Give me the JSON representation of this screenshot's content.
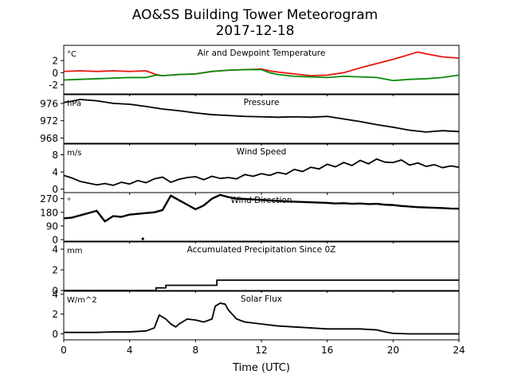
{
  "figure": {
    "title": "AO&SS Building Tower Meteorogram",
    "subtitle": "2017-12-18",
    "xlabel": "Time (UTC)"
  },
  "chart_data": [
    {
      "type": "line",
      "title": "Air and Dewpoint Temperature",
      "unit": "°C",
      "xlim": [
        0,
        24
      ],
      "ylim": [
        -3.5,
        4.5
      ],
      "yticks": [
        2,
        0,
        -2
      ],
      "xticks": [
        0,
        4,
        8,
        12,
        16,
        20,
        24
      ],
      "grid": false,
      "series": [
        {
          "color": "#e8140f",
          "x": [
            0,
            1,
            2,
            3,
            4,
            5,
            5.6,
            6,
            7,
            8,
            9,
            10,
            11,
            12,
            12.5,
            13,
            14,
            15,
            16,
            17,
            18,
            19,
            20,
            21,
            21.5,
            22,
            23,
            24
          ],
          "y": [
            0.2,
            0.3,
            0.2,
            0.3,
            0.2,
            0.3,
            -0.3,
            -0.5,
            -0.3,
            -0.2,
            0.2,
            0.4,
            0.5,
            0.6,
            0.3,
            0.1,
            -0.2,
            -0.5,
            -0.4,
            0.0,
            0.8,
            1.5,
            2.2,
            3.0,
            3.4,
            3.1,
            2.6,
            2.4
          ]
        },
        {
          "color": "#0a8a0a",
          "x": [
            0,
            1,
            2,
            3,
            4,
            5,
            5.6,
            6,
            7,
            8,
            9,
            10,
            11,
            12,
            12.5,
            13,
            14,
            15,
            16,
            17,
            18,
            19,
            20,
            21,
            22,
            23,
            24
          ],
          "y": [
            -1.2,
            -1.1,
            -1.0,
            -0.9,
            -0.8,
            -0.8,
            -0.4,
            -0.5,
            -0.3,
            -0.2,
            0.2,
            0.4,
            0.5,
            0.5,
            0.0,
            -0.3,
            -0.6,
            -0.7,
            -0.8,
            -0.6,
            -0.7,
            -0.8,
            -1.3,
            -1.1,
            -1.0,
            -0.8,
            -0.4
          ]
        }
      ]
    },
    {
      "type": "line",
      "title": "Pressure",
      "unit": "hPa",
      "xlim": [
        0,
        24
      ],
      "ylim": [
        966.8,
        978
      ],
      "yticks": [
        976,
        972,
        968
      ],
      "grid": false,
      "series": [
        {
          "color": "#000000",
          "x": [
            0,
            0.5,
            1,
            2,
            3,
            4,
            5,
            6,
            7,
            8,
            9,
            10,
            11,
            12,
            13,
            14,
            15,
            16,
            17,
            18,
            19,
            20,
            21,
            22,
            23,
            24
          ],
          "y": [
            976.2,
            976.5,
            976.9,
            976.6,
            976.0,
            975.8,
            975.3,
            974.7,
            974.3,
            973.8,
            973.4,
            973.2,
            973.0,
            972.9,
            972.8,
            972.9,
            972.8,
            973.0,
            972.4,
            971.8,
            971.1,
            970.5,
            969.8,
            969.4,
            969.7,
            969.5
          ]
        }
      ]
    },
    {
      "type": "line",
      "title": "Wind Speed",
      "unit": "m/s",
      "xlim": [
        0,
        24
      ],
      "ylim": [
        -0.8,
        10.5
      ],
      "yticks": [
        8,
        4,
        0
      ],
      "grid": false,
      "series": [
        {
          "color": "#000000",
          "x": [
            0,
            0.5,
            1,
            1.5,
            2,
            2.5,
            3,
            3.5,
            4,
            4.5,
            5,
            5.5,
            6,
            6.5,
            7,
            7.5,
            8,
            8.5,
            9,
            9.5,
            10,
            10.5,
            11,
            11.5,
            12,
            12.5,
            13,
            13.5,
            14,
            14.5,
            15,
            15.5,
            16,
            16.5,
            17,
            17.5,
            18,
            18.5,
            19,
            19.5,
            20,
            20.5,
            21,
            21.5,
            22,
            22.5,
            23,
            23.5,
            24
          ],
          "y": [
            3.2,
            2.6,
            1.8,
            1.4,
            1.0,
            1.3,
            0.9,
            1.6,
            1.2,
            2.0,
            1.5,
            2.4,
            2.8,
            1.6,
            2.3,
            2.7,
            2.9,
            2.2,
            3.0,
            2.5,
            2.7,
            2.4,
            3.4,
            3.0,
            3.6,
            3.2,
            3.9,
            3.5,
            4.6,
            4.1,
            5.1,
            4.7,
            5.8,
            5.2,
            6.2,
            5.5,
            6.7,
            5.9,
            7.0,
            6.3,
            6.2,
            6.8,
            5.6,
            6.1,
            5.3,
            5.7,
            5.0,
            5.4,
            5.1
          ]
        }
      ]
    },
    {
      "type": "scatter",
      "title": "Wind Direction",
      "unit": "°",
      "xlim": [
        0,
        24
      ],
      "ylim": [
        -10,
        310
      ],
      "yticks": [
        270,
        180,
        90,
        0
      ],
      "grid": false,
      "series": [
        {
          "color": "#000000",
          "x": [
            0,
            0.5,
            1,
            1.5,
            2,
            2.5,
            3,
            3.5,
            4,
            4.5,
            5,
            5.5,
            6,
            6.5,
            7,
            7.5,
            8,
            8.5,
            9,
            9.5,
            10,
            10.5,
            11,
            11.5,
            12,
            12.5,
            13,
            13.5,
            14,
            14.5,
            15,
            15.5,
            16,
            16.5,
            17,
            17.5,
            18,
            18.5,
            19,
            19.5,
            20,
            20.5,
            21,
            21.5,
            22,
            22.5,
            23,
            23.5,
            24
          ],
          "y": [
            140,
            145,
            160,
            175,
            190,
            120,
            155,
            150,
            165,
            170,
            175,
            180,
            195,
            290,
            260,
            230,
            200,
            225,
            270,
            295,
            280,
            270,
            268,
            265,
            262,
            258,
            255,
            252,
            250,
            248,
            246,
            244,
            242,
            238,
            240,
            236,
            238,
            234,
            236,
            230,
            228,
            222,
            218,
            214,
            212,
            210,
            208,
            205,
            204
          ]
        },
        {
          "color": "#000000",
          "x": [
            4.8
          ],
          "y": [
            5
          ]
        }
      ]
    },
    {
      "type": "line",
      "title": "Accumulated Precipitation Since 0Z",
      "unit": "mm",
      "xlim": [
        0,
        24
      ],
      "ylim": [
        0,
        4.7
      ],
      "yticks": [
        4,
        2,
        0
      ],
      "grid": false,
      "series": [
        {
          "color": "#000000",
          "step": true,
          "x": [
            0,
            5.6,
            6.2,
            9.3,
            24
          ],
          "y": [
            0,
            0.25,
            0.5,
            1.0,
            1.0
          ]
        }
      ]
    },
    {
      "type": "line",
      "title": "Solar Flux",
      "unit": "W/m^2",
      "xlim": [
        0,
        24
      ],
      "ylim": [
        -0.6,
        4.3
      ],
      "yticks": [
        4,
        2,
        0
      ],
      "grid": false,
      "series": [
        {
          "color": "#000000",
          "x": [
            0,
            1,
            2,
            3,
            4,
            5,
            5.5,
            5.8,
            6.2,
            6.5,
            6.8,
            7,
            7.5,
            8,
            8.5,
            9,
            9.2,
            9.5,
            9.8,
            10,
            10.5,
            11,
            12,
            13,
            14,
            15,
            16,
            17,
            18,
            19,
            19.5,
            20,
            21,
            22,
            23,
            24
          ],
          "y": [
            0.15,
            0.15,
            0.15,
            0.2,
            0.2,
            0.3,
            0.6,
            1.9,
            1.5,
            1.0,
            0.7,
            1.0,
            1.5,
            1.4,
            1.2,
            1.5,
            2.8,
            3.1,
            3.0,
            2.4,
            1.5,
            1.2,
            1.0,
            0.8,
            0.7,
            0.6,
            0.5,
            0.5,
            0.5,
            0.4,
            0.2,
            0.05,
            0.0,
            0.0,
            0.0,
            0.0
          ]
        }
      ]
    }
  ]
}
